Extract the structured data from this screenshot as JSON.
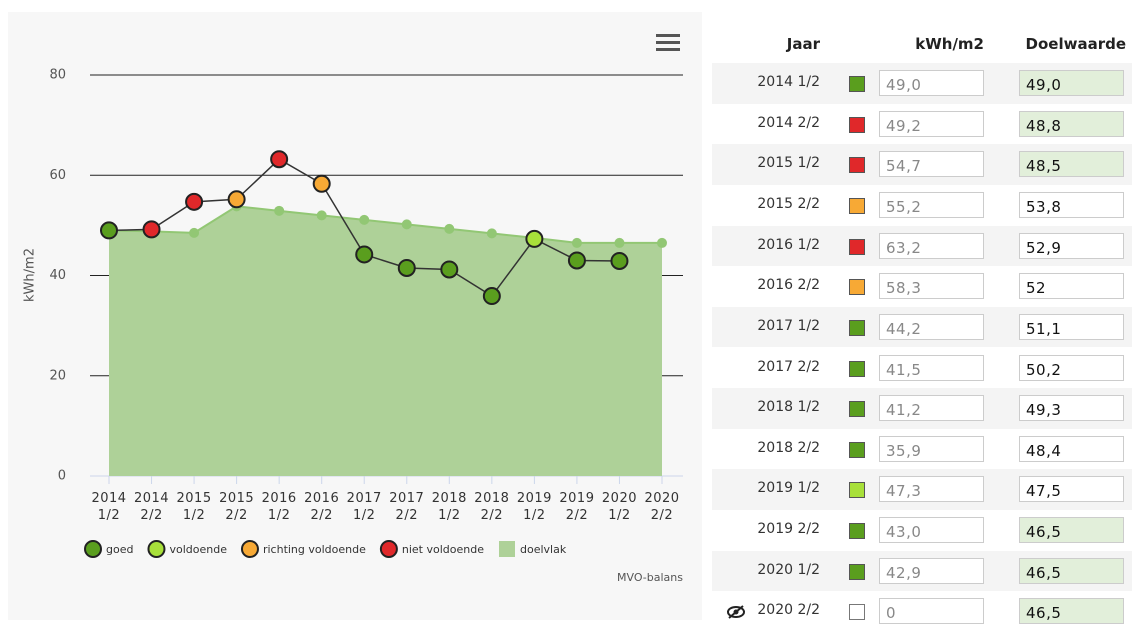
{
  "chart_data": {
    "type": "line",
    "y_label": "kWh/m2",
    "credit": "MVO-balans",
    "categories": [
      "2014 1/2",
      "2014 2/2",
      "2015 1/2",
      "2015 2/2",
      "2016 1/2",
      "2016 2/2",
      "2017 1/2",
      "2017 2/2",
      "2018 1/2",
      "2018 2/2",
      "2019 1/2",
      "2019 2/2",
      "2020 1/2",
      "2020 2/2"
    ],
    "statuses": [
      {
        "name": "goed",
        "color": "#5a9e1e"
      },
      {
        "name": "voldoende",
        "color": "#a8e03a"
      },
      {
        "name": "richting voldoende",
        "color": "#f7a935"
      },
      {
        "name": "niet voldoende",
        "color": "#e0282a"
      }
    ],
    "series": [
      {
        "color": "#333333",
        "values": [
          49.0,
          49.2,
          54.7,
          55.2,
          63.2,
          58.3,
          44.2,
          41.5,
          41.2,
          35.9,
          47.3,
          43.0,
          42.9,
          null
        ],
        "point_status": [
          0,
          3,
          3,
          2,
          3,
          2,
          0,
          0,
          0,
          0,
          1,
          0,
          0,
          null
        ]
      },
      {
        "name": "doelvlak",
        "color": "#aed198",
        "line_color": "#92c774",
        "values": [
          49.0,
          48.8,
          48.5,
          53.8,
          52.9,
          52,
          51.1,
          50.2,
          49.3,
          48.4,
          47.5,
          46.5,
          46.5,
          46.5
        ]
      }
    ],
    "ylim": [
      0,
      80
    ],
    "yticks": [
      0,
      20,
      40,
      60,
      80
    ],
    "grid": true
  },
  "table": {
    "headers": [
      "Jaar",
      "kWh/m2",
      "Doelwaarde"
    ],
    "rows": [
      {
        "year": "2014 1/2",
        "color": "#5a9e1e",
        "kwh": "49,0",
        "target": "49,0",
        "highlight": true
      },
      {
        "year": "2014 2/2",
        "color": "#e0282a",
        "kwh": "49,2",
        "target": "48,8",
        "highlight": true
      },
      {
        "year": "2015 1/2",
        "color": "#e0282a",
        "kwh": "54,7",
        "target": "48,5",
        "highlight": true
      },
      {
        "year": "2015 2/2",
        "color": "#f7a935",
        "kwh": "55,2",
        "target": "53,8",
        "highlight": false
      },
      {
        "year": "2016 1/2",
        "color": "#e0282a",
        "kwh": "63,2",
        "target": "52,9",
        "highlight": false
      },
      {
        "year": "2016 2/2",
        "color": "#f7a935",
        "kwh": "58,3",
        "target": "52",
        "highlight": false
      },
      {
        "year": "2017 1/2",
        "color": "#5a9e1e",
        "kwh": "44,2",
        "target": "51,1",
        "highlight": false
      },
      {
        "year": "2017 2/2",
        "color": "#5a9e1e",
        "kwh": "41,5",
        "target": "50,2",
        "highlight": false
      },
      {
        "year": "2018 1/2",
        "color": "#5a9e1e",
        "kwh": "41,2",
        "target": "49,3",
        "highlight": false
      },
      {
        "year": "2018 2/2",
        "color": "#5a9e1e",
        "kwh": "35,9",
        "target": "48,4",
        "highlight": false
      },
      {
        "year": "2019 1/2",
        "color": "#a8e03a",
        "kwh": "47,3",
        "target": "47,5",
        "highlight": false
      },
      {
        "year": "2019 2/2",
        "color": "#5a9e1e",
        "kwh": "43,0",
        "target": "46,5",
        "highlight": true
      },
      {
        "year": "2020 1/2",
        "color": "#5a9e1e",
        "kwh": "42,9",
        "target": "46,5",
        "highlight": true
      },
      {
        "year": "2020 2/2",
        "color": null,
        "kwh": "0",
        "target": "46,5",
        "highlight": true,
        "hidden": true
      }
    ]
  }
}
